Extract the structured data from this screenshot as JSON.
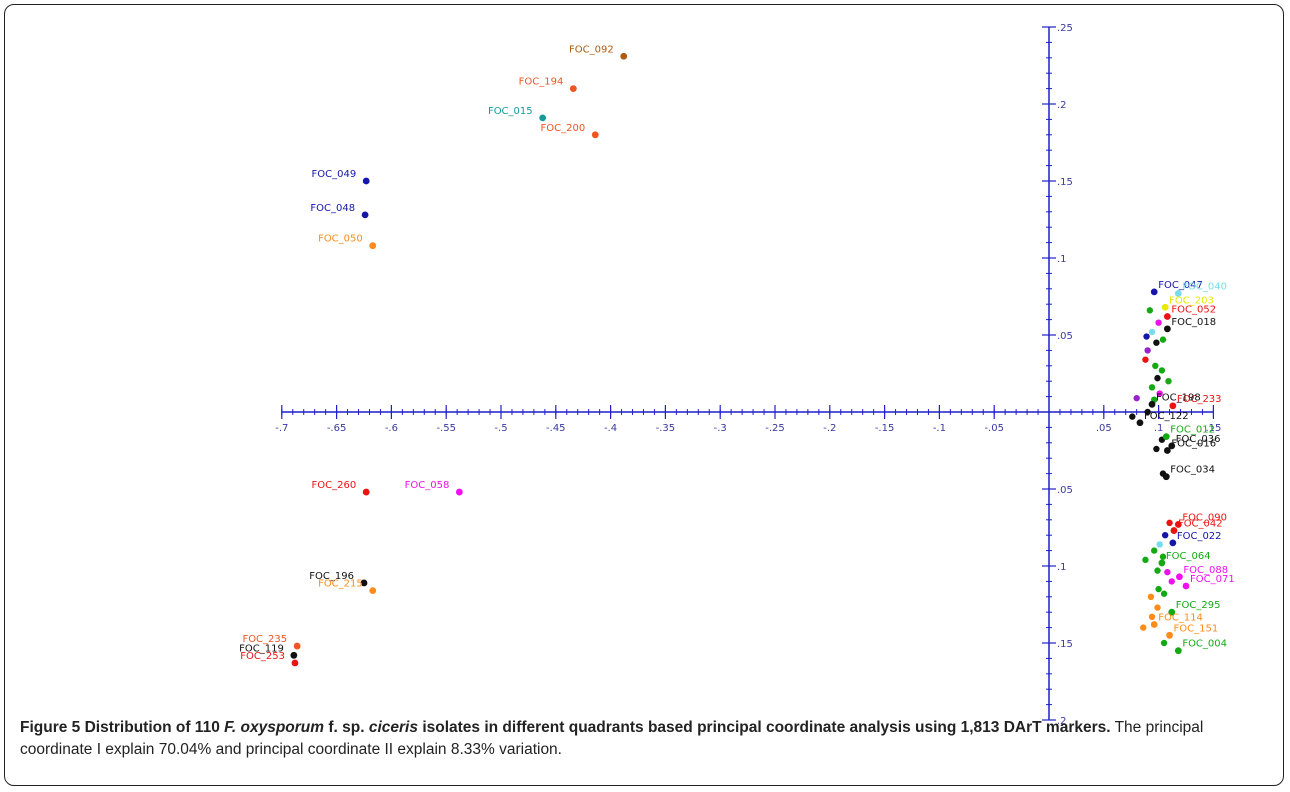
{
  "caption": {
    "figure_num": "Figure 5",
    "t1": "Distribution of 110",
    "t2": "F. oxysporum",
    "t3": "f. sp.",
    "t4": "ciceris",
    "t5": "isolates in different quadrants based principal coordinate analysis using 1,813 DArT markers.",
    "t6": "The principal coordinate I explain 70.04% and principal coordinate II explain 8.33% variation."
  },
  "chart_data": {
    "type": "scatter",
    "title": "",
    "xlabel": "",
    "ylabel": "",
    "xlim": [
      -0.7,
      0.15
    ],
    "ylim": [
      -0.2,
      0.25
    ],
    "axis_color": "#1f1fcc",
    "x_ticks": [
      {
        "v": -0.7,
        "label": "-.7"
      },
      {
        "v": -0.65,
        "label": "-.65"
      },
      {
        "v": -0.6,
        "label": "-.6"
      },
      {
        "v": -0.55,
        "label": "-.55"
      },
      {
        "v": -0.5,
        "label": "-.5"
      },
      {
        "v": -0.45,
        "label": "-.45"
      },
      {
        "v": -0.4,
        "label": "-.4"
      },
      {
        "v": -0.35,
        "label": "-.35"
      },
      {
        "v": -0.3,
        "label": "-.3"
      },
      {
        "v": -0.25,
        "label": "-.25"
      },
      {
        "v": -0.2,
        "label": "-.2"
      },
      {
        "v": -0.15,
        "label": "-.15"
      },
      {
        "v": -0.1,
        "label": "-.1"
      },
      {
        "v": -0.05,
        "label": "-.05"
      },
      {
        "v": 0.05,
        "label": ".05"
      },
      {
        "v": 0.1,
        "label": ".1"
      },
      {
        "v": 0.15,
        "label": ".15"
      }
    ],
    "y_ticks": [
      {
        "v": 0.25,
        "label": ".25"
      },
      {
        "v": 0.2,
        "label": ".2"
      },
      {
        "v": 0.15,
        "label": ".15"
      },
      {
        "v": 0.1,
        "label": ".1"
      },
      {
        "v": 0.05,
        "label": ".05"
      },
      {
        "v": -0.05,
        "label": ".05"
      },
      {
        "v": -0.1,
        "label": ".1"
      },
      {
        "v": -0.15,
        "label": ".15"
      },
      {
        "v": -0.2,
        "label": ".2"
      }
    ],
    "labeled_points": [
      {
        "label": "FOC_092",
        "x": -0.388,
        "y": 0.231,
        "color": "#b05a10"
      },
      {
        "label": "FOC_194",
        "x": -0.434,
        "y": 0.21,
        "color": "#ee5522"
      },
      {
        "label": "FOC_015",
        "x": -0.462,
        "y": 0.191,
        "color": "#159a9a"
      },
      {
        "label": "FOC_200",
        "x": -0.414,
        "y": 0.18,
        "color": "#ee5522"
      },
      {
        "label": "FOC_049",
        "x": -0.623,
        "y": 0.15,
        "color": "#1515aa"
      },
      {
        "label": "FOC_048",
        "x": -0.624,
        "y": 0.128,
        "color": "#1515aa"
      },
      {
        "label": "FOC_050",
        "x": -0.617,
        "y": 0.108,
        "color": "#ff8c1a"
      },
      {
        "label": "FOC_260",
        "x": -0.623,
        "y": -0.052,
        "color": "#ee1111"
      },
      {
        "label": "FOC_058",
        "x": -0.538,
        "y": -0.052,
        "color": "#ee11ee"
      },
      {
        "label": "FOC_196",
        "x": -0.625,
        "y": -0.111,
        "color": "#111111"
      },
      {
        "label": "FOC_215",
        "x": -0.617,
        "y": -0.116,
        "color": "#ff8c1a"
      },
      {
        "label": "FOC_235",
        "x": -0.686,
        "y": -0.152,
        "color": "#ee5522"
      },
      {
        "label": "FOC_119",
        "x": -0.689,
        "y": -0.158,
        "color": "#111111"
      },
      {
        "label": "FOC_253",
        "x": -0.688,
        "y": -0.163,
        "color": "#ee1111"
      },
      {
        "label": "FOC_047",
        "x": 0.096,
        "y": 0.078,
        "color": "#1515aa"
      },
      {
        "label": "FOC_040",
        "x": 0.118,
        "y": 0.077,
        "color": "#77ddee"
      },
      {
        "label": "FOC_203",
        "x": 0.106,
        "y": 0.068,
        "color": "#e8e800"
      },
      {
        "label": "FOC_052",
        "x": 0.108,
        "y": 0.062,
        "color": "#ee1111"
      },
      {
        "label": "FOC_018",
        "x": 0.108,
        "y": 0.054,
        "color": "#111111"
      },
      {
        "label": "FOC_233",
        "x": 0.113,
        "y": 0.004,
        "color": "#ee1111"
      },
      {
        "label": "FOC_198",
        "x": 0.094,
        "y": 0.005,
        "color": "#111111"
      },
      {
        "label": "FOC_122",
        "x": 0.083,
        "y": -0.007,
        "color": "#111111"
      },
      {
        "label": "FOC_012",
        "x": 0.107,
        "y": -0.016,
        "color": "#15aa15"
      },
      {
        "label": "FOC_036",
        "x": 0.112,
        "y": -0.022,
        "color": "#111111"
      },
      {
        "label": "FOC_016",
        "x": 0.108,
        "y": -0.025,
        "color": "#111111"
      },
      {
        "label": "FOC_034",
        "x": 0.107,
        "y": -0.042,
        "color": "#111111"
      },
      {
        "label": "FOC_090",
        "x": 0.118,
        "y": -0.073,
        "color": "#ee1111"
      },
      {
        "label": "FOC_042",
        "x": 0.114,
        "y": -0.077,
        "color": "#ee1111"
      },
      {
        "label": "FOC_022",
        "x": 0.113,
        "y": -0.085,
        "color": "#1515aa"
      },
      {
        "label": "FOC_064",
        "x": 0.103,
        "y": -0.098,
        "color": "#15aa15"
      },
      {
        "label": "FOC_088",
        "x": 0.119,
        "y": -0.107,
        "color": "#ee11ee"
      },
      {
        "label": "FOC_071",
        "x": 0.125,
        "y": -0.113,
        "color": "#ee11ee"
      },
      {
        "label": "FOC_295",
        "x": 0.112,
        "y": -0.13,
        "color": "#15aa15"
      },
      {
        "label": "FOC_114",
        "x": 0.096,
        "y": -0.138,
        "color": "#ff8c1a"
      },
      {
        "label": "FOC_151",
        "x": 0.11,
        "y": -0.145,
        "color": "#ff8c1a"
      },
      {
        "label": "FOC_004",
        "x": 0.118,
        "y": -0.155,
        "color": "#15aa15"
      }
    ],
    "cluster_points": [
      {
        "x": 0.092,
        "y": 0.066,
        "color": "#15aa15"
      },
      {
        "x": 0.1,
        "y": 0.058,
        "color": "#ee11ee"
      },
      {
        "x": 0.094,
        "y": 0.052,
        "color": "#77ddee"
      },
      {
        "x": 0.089,
        "y": 0.049,
        "color": "#1515aa"
      },
      {
        "x": 0.098,
        "y": 0.045,
        "color": "#111111"
      },
      {
        "x": 0.104,
        "y": 0.047,
        "color": "#15aa15"
      },
      {
        "x": 0.09,
        "y": 0.04,
        "color": "#9922cc"
      },
      {
        "x": 0.088,
        "y": 0.034,
        "color": "#ee1111"
      },
      {
        "x": 0.097,
        "y": 0.03,
        "color": "#15aa15"
      },
      {
        "x": 0.103,
        "y": 0.027,
        "color": "#15aa15"
      },
      {
        "x": 0.099,
        "y": 0.022,
        "color": "#111111"
      },
      {
        "x": 0.109,
        "y": 0.02,
        "color": "#15aa15"
      },
      {
        "x": 0.094,
        "y": 0.016,
        "color": "#15aa15"
      },
      {
        "x": 0.101,
        "y": 0.012,
        "color": "#ee11ee"
      },
      {
        "x": 0.08,
        "y": 0.009,
        "color": "#9922cc"
      },
      {
        "x": 0.096,
        "y": 0.008,
        "color": "#15aa15"
      },
      {
        "x": 0.09,
        "y": 0.0,
        "color": "#111111"
      },
      {
        "x": 0.076,
        "y": -0.003,
        "color": "#111111"
      },
      {
        "x": 0.103,
        "y": -0.018,
        "color": "#111111"
      },
      {
        "x": 0.098,
        "y": -0.024,
        "color": "#111111"
      },
      {
        "x": 0.104,
        "y": -0.04,
        "color": "#111111"
      },
      {
        "x": 0.11,
        "y": -0.072,
        "color": "#ee1111"
      },
      {
        "x": 0.106,
        "y": -0.08,
        "color": "#1515aa"
      },
      {
        "x": 0.101,
        "y": -0.086,
        "color": "#77ddee"
      },
      {
        "x": 0.096,
        "y": -0.09,
        "color": "#15aa15"
      },
      {
        "x": 0.104,
        "y": -0.094,
        "color": "#15aa15"
      },
      {
        "x": 0.088,
        "y": -0.096,
        "color": "#15aa15"
      },
      {
        "x": 0.099,
        "y": -0.103,
        "color": "#15aa15"
      },
      {
        "x": 0.108,
        "y": -0.104,
        "color": "#ee11ee"
      },
      {
        "x": 0.112,
        "y": -0.11,
        "color": "#ee11ee"
      },
      {
        "x": 0.1,
        "y": -0.115,
        "color": "#15aa15"
      },
      {
        "x": 0.093,
        "y": -0.12,
        "color": "#ff8c1a"
      },
      {
        "x": 0.105,
        "y": -0.118,
        "color": "#15aa15"
      },
      {
        "x": 0.099,
        "y": -0.127,
        "color": "#ff8c1a"
      },
      {
        "x": 0.094,
        "y": -0.133,
        "color": "#ff8c1a"
      },
      {
        "x": 0.086,
        "y": -0.14,
        "color": "#ff8c1a"
      },
      {
        "x": 0.105,
        "y": -0.15,
        "color": "#15aa15"
      }
    ],
    "grid": false,
    "legend": "none"
  }
}
